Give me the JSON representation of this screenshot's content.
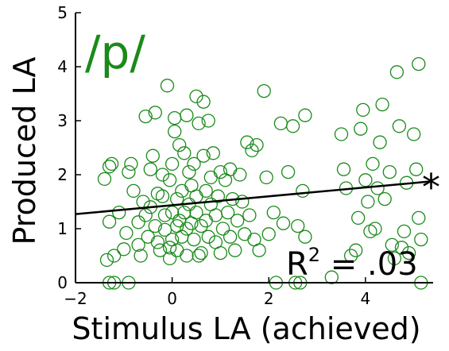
{
  "chart_data": {
    "type": "scatter",
    "title": "/p/",
    "xlabel": "Stimulus LA (achieved)",
    "ylabel": "Produced LA",
    "xlim": [
      -2,
      5.4
    ],
    "ylim": [
      0,
      5
    ],
    "xticks": [
      -2,
      0,
      2,
      4
    ],
    "xtick_labels": [
      "−2",
      "0",
      "2",
      "4"
    ],
    "yticks": [
      0,
      1,
      2,
      3,
      4,
      5
    ],
    "ytick_labels": [
      "0",
      "1",
      "2",
      "3",
      "4",
      "5"
    ],
    "grid": false,
    "marker": "open-circle",
    "marker_color": "#1a8a1a",
    "fit_line": {
      "x": [
        -2,
        5.4
      ],
      "y": [
        1.27,
        1.88
      ]
    },
    "r2_base": "R",
    "r2_sup": "2",
    "r2_value": " = .03",
    "significance": "*",
    "points": [
      [
        -1.4,
        1.92
      ],
      [
        -1.3,
        2.15
      ],
      [
        -1.25,
        2.2
      ],
      [
        -1.3,
        1.13
      ],
      [
        -1.35,
        0.42
      ],
      [
        -1.2,
        0.5
      ],
      [
        -1.3,
        0.0
      ],
      [
        -1.2,
        0.0
      ],
      [
        -1.1,
        1.3
      ],
      [
        -1.0,
        0.62
      ],
      [
        -0.95,
        0.92
      ],
      [
        -0.9,
        2.05
      ],
      [
        -0.9,
        0.0
      ],
      [
        -0.85,
        2.2
      ],
      [
        -0.8,
        1.7
      ],
      [
        -0.7,
        1.12
      ],
      [
        -0.7,
        0.7
      ],
      [
        -0.65,
        0.5
      ],
      [
        -0.6,
        1.5
      ],
      [
        -0.55,
        3.08
      ],
      [
        -0.55,
        1.25
      ],
      [
        -0.5,
        0.85
      ],
      [
        -0.45,
        1.4
      ],
      [
        -0.45,
        2.1
      ],
      [
        -0.4,
        2.35
      ],
      [
        -0.35,
        3.15
      ],
      [
        -0.35,
        1.05
      ],
      [
        -0.3,
        0.75
      ],
      [
        -0.3,
        1.65
      ],
      [
        -0.25,
        0.6
      ],
      [
        -0.2,
        2.0
      ],
      [
        -0.2,
        1.6
      ],
      [
        -0.15,
        0.98
      ],
      [
        -0.15,
        1.25
      ],
      [
        -0.1,
        3.65
      ],
      [
        -0.05,
        1.9
      ],
      [
        -0.05,
        0.65
      ],
      [
        -0.05,
        0.45
      ],
      [
        0.0,
        0.8
      ],
      [
        0.0,
        1.3
      ],
      [
        0.0,
        2.2
      ],
      [
        0.05,
        2.8
      ],
      [
        0.05,
        3.05
      ],
      [
        0.1,
        1.05
      ],
      [
        0.1,
        1.55
      ],
      [
        0.1,
        0.6
      ],
      [
        0.15,
        2.55
      ],
      [
        0.15,
        1.15
      ],
      [
        0.2,
        1.7
      ],
      [
        0.2,
        0.85
      ],
      [
        0.25,
        2.4
      ],
      [
        0.25,
        1.3
      ],
      [
        0.3,
        3.1
      ],
      [
        0.3,
        0.5
      ],
      [
        0.3,
        1.0
      ],
      [
        0.35,
        2.05
      ],
      [
        0.35,
        1.45
      ],
      [
        0.4,
        1.8
      ],
      [
        0.4,
        1.1
      ],
      [
        0.45,
        0.8
      ],
      [
        0.45,
        2.2
      ],
      [
        0.5,
        3.45
      ],
      [
        0.5,
        1.6
      ],
      [
        0.5,
        1.3
      ],
      [
        0.55,
        0.5
      ],
      [
        0.55,
        2.95
      ],
      [
        0.6,
        1.05
      ],
      [
        0.6,
        0.55
      ],
      [
        0.65,
        3.35
      ],
      [
        0.65,
        2.35
      ],
      [
        0.7,
        1.7
      ],
      [
        0.7,
        1.15
      ],
      [
        0.75,
        0.85
      ],
      [
        0.75,
        3.0
      ],
      [
        0.8,
        1.45
      ],
      [
        0.8,
        1.95
      ],
      [
        0.85,
        2.4
      ],
      [
        0.9,
        0.75
      ],
      [
        0.9,
        1.25
      ],
      [
        0.95,
        1.6
      ],
      [
        1.0,
        2.05
      ],
      [
        1.0,
        0.55
      ],
      [
        1.05,
        1.0
      ],
      [
        1.1,
        1.9
      ],
      [
        1.15,
        1.3
      ],
      [
        1.2,
        2.1
      ],
      [
        1.2,
        0.85
      ],
      [
        1.25,
        1.55
      ],
      [
        1.3,
        0.6
      ],
      [
        1.35,
        1.15
      ],
      [
        1.4,
        2.0
      ],
      [
        1.45,
        1.5
      ],
      [
        1.5,
        0.9
      ],
      [
        1.55,
        2.6
      ],
      [
        1.6,
        1.25
      ],
      [
        1.65,
        2.45
      ],
      [
        1.7,
        0.8
      ],
      [
        1.75,
        2.55
      ],
      [
        1.8,
        0.6
      ],
      [
        1.9,
        3.55
      ],
      [
        1.95,
        1.95
      ],
      [
        2.0,
        0.9
      ],
      [
        2.1,
        1.3
      ],
      [
        2.15,
        0.0
      ],
      [
        2.25,
        2.95
      ],
      [
        2.3,
        1.1
      ],
      [
        2.4,
        2.05
      ],
      [
        2.5,
        2.9
      ],
      [
        2.55,
        0.0
      ],
      [
        2.6,
        1.05
      ],
      [
        2.65,
        0.0
      ],
      [
        2.7,
        1.7
      ],
      [
        2.75,
        0.85
      ],
      [
        2.75,
        3.1
      ],
      [
        3.3,
        0.1
      ],
      [
        3.5,
        2.75
      ],
      [
        3.55,
        2.1
      ],
      [
        3.6,
        1.75
      ],
      [
        3.7,
        0.5
      ],
      [
        3.8,
        0.6
      ],
      [
        3.85,
        1.2
      ],
      [
        3.9,
        2.85
      ],
      [
        3.95,
        3.2
      ],
      [
        4.0,
        1.9
      ],
      [
        4.05,
        1.5
      ],
      [
        4.1,
        0.95
      ],
      [
        4.15,
        2.2
      ],
      [
        4.2,
        1.0
      ],
      [
        4.25,
        1.75
      ],
      [
        4.3,
        2.6
      ],
      [
        4.35,
        3.3
      ],
      [
        4.4,
        1.55
      ],
      [
        4.5,
        2.05
      ],
      [
        4.55,
        0.7
      ],
      [
        4.6,
        0.45
      ],
      [
        4.65,
        3.9
      ],
      [
        4.7,
        2.9
      ],
      [
        4.75,
        0.65
      ],
      [
        4.8,
        0.95
      ],
      [
        4.85,
        1.85
      ],
      [
        4.9,
        0.55
      ],
      [
        5.0,
        2.75
      ],
      [
        5.05,
        2.1
      ],
      [
        5.1,
        4.05
      ],
      [
        5.1,
        1.2
      ],
      [
        5.15,
        0.8
      ],
      [
        5.15,
        0.0
      ]
    ]
  }
}
